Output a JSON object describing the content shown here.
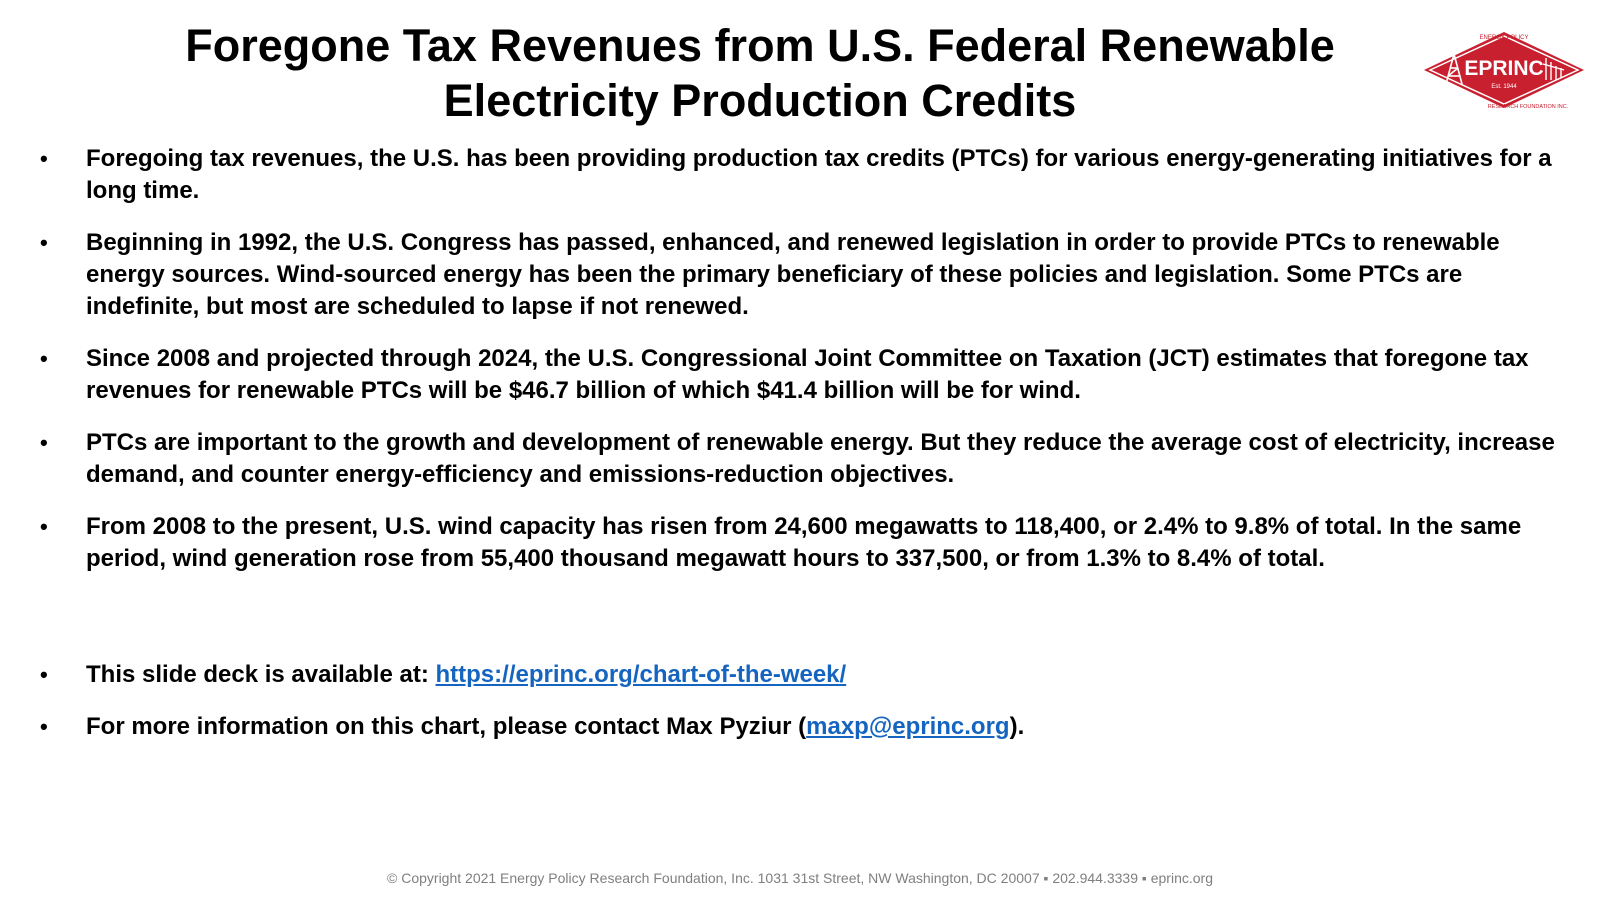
{
  "title": {
    "line1": "Foregone Tax Revenues from U.S. Federal Renewable",
    "line2": "Electricity Production Credits"
  },
  "logo": {
    "name": "EPRINC",
    "est": "Est. 1944",
    "arc_top": "ENERGY POLICY",
    "arc_bottom": "RESEARCH FOUNDATION INC.",
    "color": "#c8202f"
  },
  "bullets": [
    "Foregoing tax revenues, the U.S. has been providing production tax credits (PTCs) for various energy-generating initiatives for a long time.",
    "Beginning in 1992, the U.S. Congress has passed, enhanced, and renewed legislation in order to provide PTCs to renewable energy sources. Wind-sourced energy has been the primary beneficiary of these policies and legislation. Some PTCs are indefinite, but most are scheduled to lapse if not renewed.",
    "Since 2008 and projected through 2024, the U.S. Congressional Joint Committee on Taxation (JCT) estimates that foregone tax revenues for renewable PTCs will be $46.7 billion of which $41.4 billion will be for wind.",
    "PTCs are important to the growth and development of renewable energy. But they reduce the average cost of electricity, increase demand, and counter energy-efficiency and emissions-reduction objectives.",
    "From 2008 to the present, U.S. wind capacity has risen from 24,600 megawatts to 118,400, or 2.4% to 9.8% of total. In the same period, wind generation rose from 55,400 thousand megawatt hours to 337,500, or from 1.3% to 8.4% of total."
  ],
  "deck": {
    "prefix": "This slide deck is available at: ",
    "link": "https://eprinc.org/chart-of-the-week/"
  },
  "contact": {
    "prefix": "For more information on this chart, please contact Max Pyziur (",
    "email": "maxp@eprinc.org",
    "suffix": ")."
  },
  "bullet_glyph": "•",
  "footer": "© Copyright 2021 Energy Policy Research Foundation, Inc. 1031 31st Street, NW Washington, DC 20007 ▪ 202.944.3339 ▪ eprinc.org",
  "colors": {
    "link": "#1565c0",
    "footer": "#7f7f7f"
  }
}
